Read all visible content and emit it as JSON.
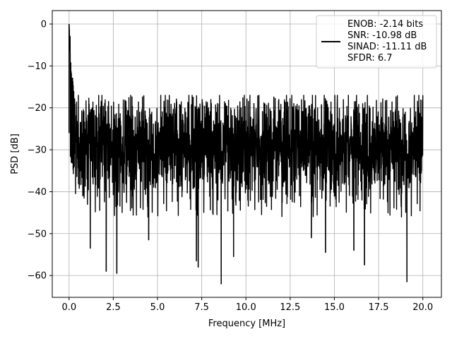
{
  "chart_data": {
    "type": "line",
    "xlabel": "Frequency [MHz]",
    "ylabel": "PSD [dB]",
    "xlim": [
      -0.95,
      21.05
    ],
    "ylim": [
      -65.2,
      3.2
    ],
    "grid": true,
    "x_ticks": [
      {
        "value": 0.0,
        "label": "0.0"
      },
      {
        "value": 2.5,
        "label": "2.5"
      },
      {
        "value": 5.0,
        "label": "5.0"
      },
      {
        "value": 7.5,
        "label": "7.5"
      },
      {
        "value": 10.0,
        "label": "10.0"
      },
      {
        "value": 12.5,
        "label": "12.5"
      },
      {
        "value": 15.0,
        "label": "15.0"
      },
      {
        "value": 17.5,
        "label": "17.5"
      },
      {
        "value": 20.0,
        "label": "20.0"
      }
    ],
    "y_ticks": [
      {
        "value": 0,
        "label": "0"
      },
      {
        "value": -10,
        "label": "−10"
      },
      {
        "value": -20,
        "label": "−20"
      },
      {
        "value": -30,
        "label": "−30"
      },
      {
        "value": -40,
        "label": "−40"
      },
      {
        "value": -50,
        "label": "−50"
      },
      {
        "value": -60,
        "label": "−60"
      }
    ],
    "legend": {
      "placement": "top-right",
      "lines": [
        "ENOB: -2.14 bits",
        "SNR: -10.98 dB",
        "SINAD: -11.11 dB",
        "SFDR: 6.7"
      ]
    },
    "series": [
      {
        "color": "#000000",
        "peak": {
          "x": 0.0,
          "y": 0.0
        },
        "x_range": [
          0.0,
          20.0
        ],
        "noise_floor_mean": -29,
        "noise_upper_typical": -21,
        "noise_lower_typical": -40,
        "notable_minima": [
          {
            "x": 1.2,
            "y": -53.5
          },
          {
            "x": 2.1,
            "y": -59.0
          },
          {
            "x": 2.7,
            "y": -59.5
          },
          {
            "x": 4.5,
            "y": -51.5
          },
          {
            "x": 7.2,
            "y": -56.5
          },
          {
            "x": 7.3,
            "y": -58.0
          },
          {
            "x": 8.6,
            "y": -62.0
          },
          {
            "x": 9.3,
            "y": -55.5
          },
          {
            "x": 13.7,
            "y": -51.0
          },
          {
            "x": 14.5,
            "y": -54.5
          },
          {
            "x": 16.1,
            "y": -54.0
          },
          {
            "x": 16.7,
            "y": -57.5
          },
          {
            "x": 19.1,
            "y": -61.5
          }
        ]
      }
    ]
  }
}
